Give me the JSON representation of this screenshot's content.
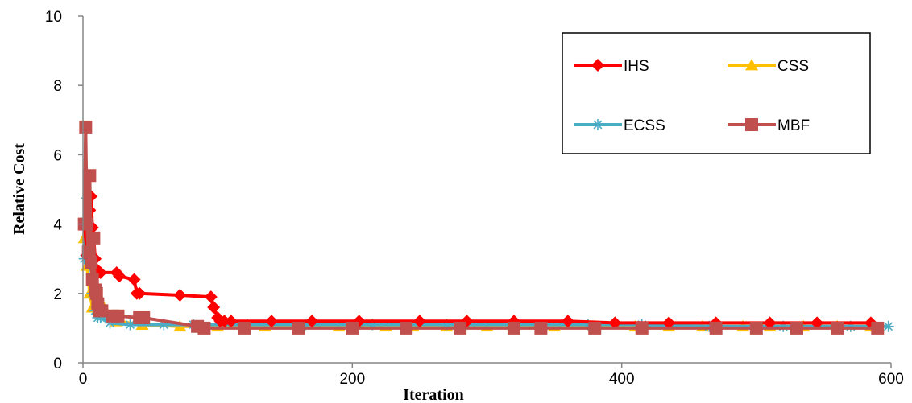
{
  "chart_data": {
    "type": "line",
    "title": "",
    "xlabel": "Iteration",
    "ylabel": "Relative Cost",
    "xlim": [
      0,
      600
    ],
    "ylim": [
      0,
      10
    ],
    "xticks": [
      "0",
      "200",
      "400",
      "600"
    ],
    "yticks": [
      "0",
      "2",
      "4",
      "6",
      "8",
      "10"
    ],
    "grid": false,
    "legend_position": "top-right",
    "series": [
      {
        "name": "IHS",
        "color": "#ff0000",
        "marker": "diamond",
        "x": [
          1,
          3,
          5,
          6,
          7,
          8,
          9,
          10,
          11,
          13,
          25,
          27,
          38,
          40,
          42,
          72,
          95,
          97,
          100,
          102,
          105,
          110,
          140,
          170,
          205,
          250,
          285,
          320,
          360,
          395,
          435,
          470,
          510,
          545,
          585
        ],
        "y": [
          4.0,
          3.1,
          4.4,
          4.8,
          3.9,
          3.6,
          3.0,
          2.7,
          2.6,
          2.6,
          2.6,
          2.5,
          2.4,
          2.0,
          2.0,
          1.95,
          1.9,
          1.6,
          1.3,
          1.2,
          1.2,
          1.2,
          1.2,
          1.2,
          1.2,
          1.2,
          1.2,
          1.2,
          1.2,
          1.15,
          1.15,
          1.15,
          1.15,
          1.15,
          1.15
        ]
      },
      {
        "name": "CSS",
        "color": "#ffc000",
        "marker": "triangle",
        "x": [
          1,
          3,
          5,
          7,
          9,
          14,
          25,
          44,
          72,
          100,
          135,
          160,
          190,
          225,
          245,
          270,
          300,
          320,
          350,
          380,
          410,
          435,
          460,
          490,
          510,
          535,
          560,
          585
        ],
        "y": [
          3.6,
          2.8,
          2.0,
          1.6,
          1.6,
          1.7,
          1.2,
          1.1,
          1.05,
          1.05,
          1.05,
          1.05,
          1.05,
          1.05,
          1.05,
          1.05,
          1.05,
          1.05,
          1.05,
          1.05,
          1.05,
          1.05,
          1.05,
          1.05,
          1.05,
          1.05,
          1.05,
          1.05
        ]
      },
      {
        "name": "ECSS",
        "color": "#4bacc6",
        "marker": "asterisk",
        "x": [
          1,
          3,
          5,
          7,
          9,
          11,
          13,
          20,
          35,
          60,
          82,
          122,
          165,
          215,
          270,
          320,
          375,
          415,
          465,
          520,
          570,
          598
        ],
        "y": [
          3.0,
          4.75,
          3.5,
          2.0,
          1.5,
          1.3,
          1.3,
          1.15,
          1.1,
          1.1,
          1.1,
          1.1,
          1.1,
          1.1,
          1.1,
          1.1,
          1.1,
          1.1,
          1.05,
          1.05,
          1.05,
          1.05
        ]
      },
      {
        "name": "MBF",
        "color": "#c0504d",
        "marker": "square",
        "x": [
          1,
          2,
          3,
          4,
          5,
          6,
          7,
          8,
          9,
          10,
          11,
          12,
          14,
          22,
          26,
          42,
          45,
          85,
          90,
          120,
          160,
          200,
          240,
          280,
          320,
          340,
          380,
          415,
          470,
          500,
          530,
          560,
          590
        ],
        "y": [
          4.0,
          6.8,
          4.0,
          3.2,
          5.4,
          2.9,
          2.4,
          3.6,
          2.1,
          2.0,
          1.7,
          1.5,
          1.5,
          1.35,
          1.35,
          1.3,
          1.3,
          1.05,
          1.0,
          1.0,
          1.0,
          1.0,
          1.0,
          1.0,
          1.0,
          1.0,
          1.0,
          1.0,
          1.0,
          1.0,
          1.0,
          1.0,
          1.0
        ]
      }
    ]
  }
}
